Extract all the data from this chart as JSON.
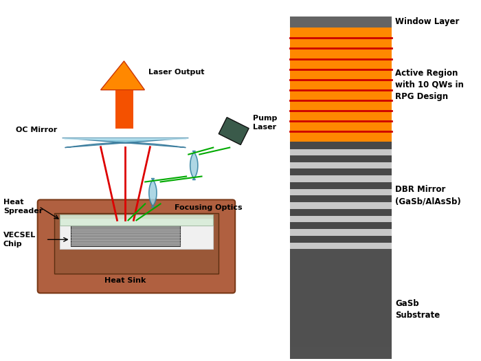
{
  "bg_color": "#ffffff",
  "left_panel": {
    "heat_sink_color": "#b06040",
    "heat_sink_inner_color": "#c87850",
    "chip_color": "#909090",
    "heat_spreader_color": "#d8ecd8",
    "mirror_color": "#90cce0",
    "mirror_highlight": "#c8eaf5",
    "red_beam_color": "#dd0000",
    "green_beam_color": "#00aa00",
    "arrow_fill": "#ff6600",
    "arrow_edge": "#cc2200",
    "pump_laser_color": "#3a5a4a",
    "lens_color": "#a0d0e0",
    "labels": {
      "laser_output": "Laser Output",
      "oc_mirror": "OC Mirror",
      "heat_spreader": "Heat\nSpreader",
      "vecsel_chip": "VECSEL\nChip",
      "heat_sink": "Heat Sink",
      "pump_laser": "Pump\nLaser",
      "focusing_optics": "Focusing Optics"
    }
  },
  "right_panel": {
    "window_layer_color": "#646464",
    "active_region_color": "#ff8800",
    "qw_color": "#cc0000",
    "qw_count": 10,
    "dbr_dark_color": "#484848",
    "dbr_light_color": "#c8c8c8",
    "dbr_pairs": 8,
    "substrate_color": "#505050",
    "labels": {
      "window_layer": "Window Layer",
      "active_region": "Active Region\nwith 10 QWs in\nRPG Design",
      "dbr_mirror": "DBR Mirror\n(GaSb/AlAsSb)",
      "substrate": "GaSb\nSubstrate"
    }
  }
}
